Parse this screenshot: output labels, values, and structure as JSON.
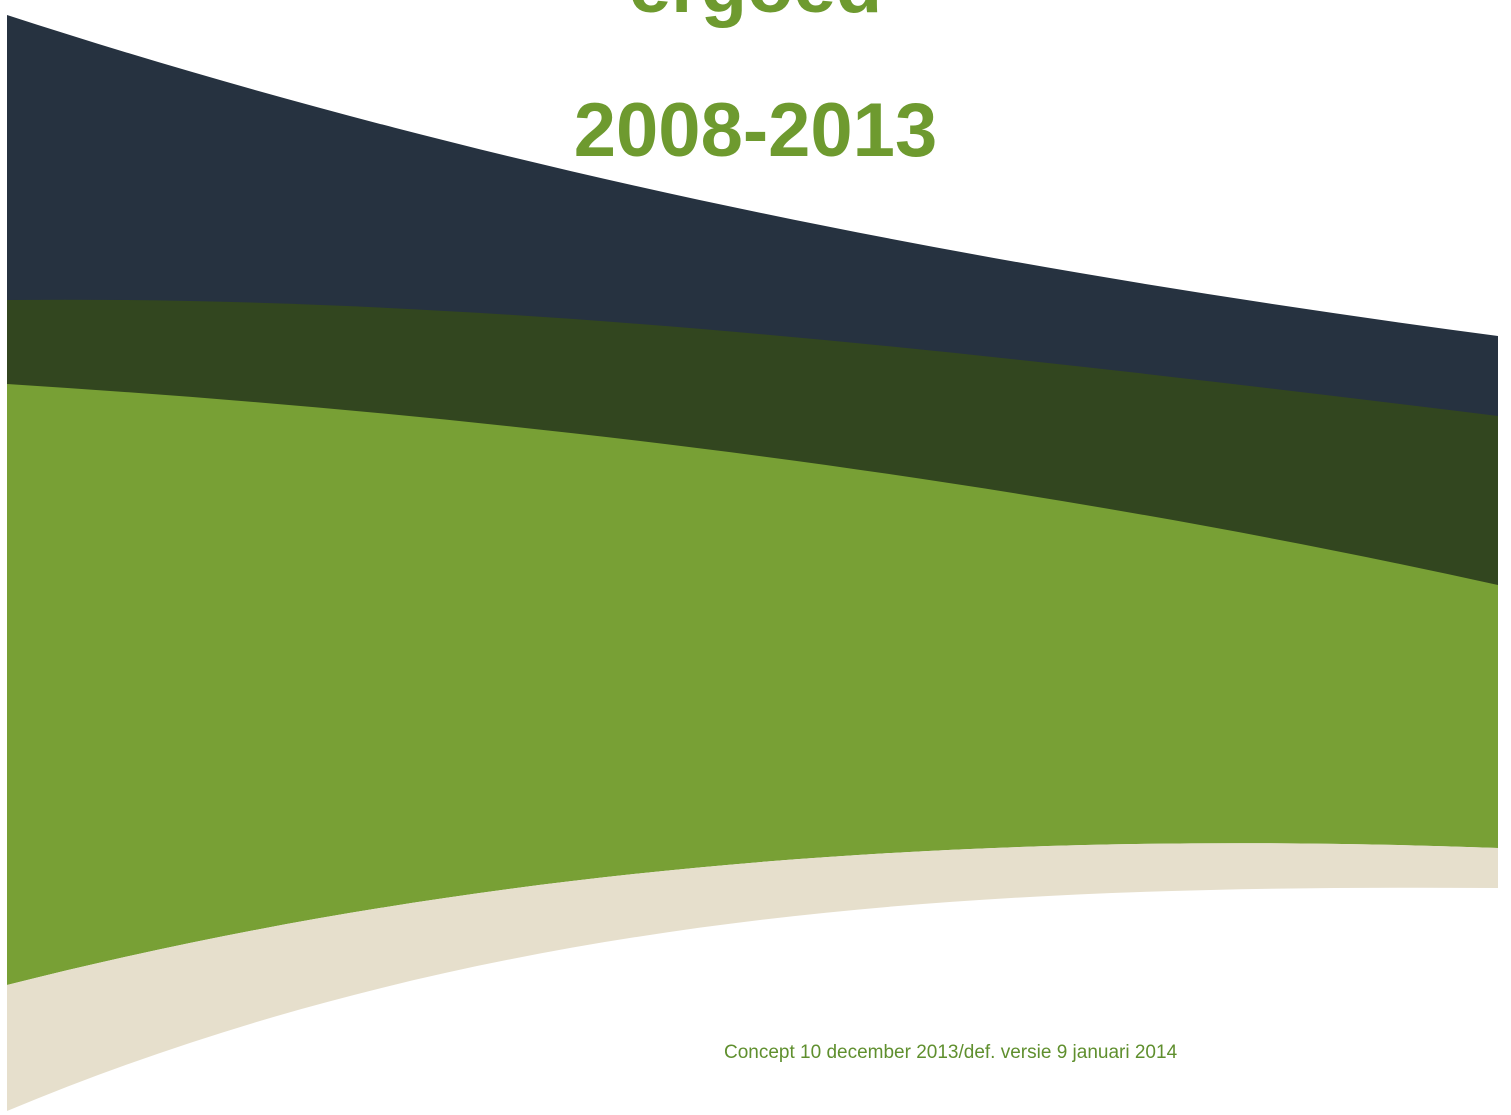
{
  "cover": {
    "title_partial": "ergoed",
    "years": "2008-2013",
    "version_note": "Concept 10 december 2013/def. versie 9 januari 2014"
  },
  "colors": {
    "navy_band": "#263240",
    "dark_green_band": "#32461f",
    "green_band": "#78a035",
    "beige_band": "#e6dfcc",
    "title_green": "#6e9a2f",
    "note_green": "#5f8f2e"
  }
}
